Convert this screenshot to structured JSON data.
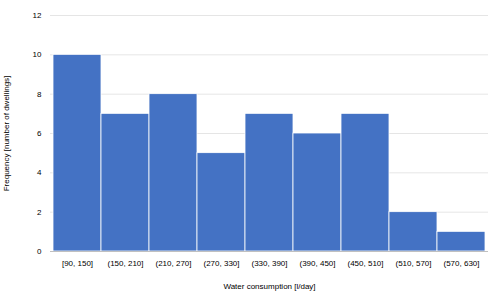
{
  "chart_data": {
    "type": "bar",
    "categories": [
      "[90, 150]",
      "(150, 210]",
      "(210, 270]",
      "(270, 330]",
      "(330, 390]",
      "(390, 450]",
      "(450, 510]",
      "(510, 570]",
      "(570, 630]"
    ],
    "values": [
      10,
      7,
      8,
      5,
      7,
      6,
      7,
      2,
      1
    ],
    "color": "#4472c4",
    "xlabel": "Water consumption [l/day]",
    "ylabel": "Frequency [number of dwellings]",
    "ylim": [
      0,
      12
    ],
    "yticks": [
      0,
      2,
      4,
      6,
      8,
      10,
      12
    ],
    "grid": true
  }
}
